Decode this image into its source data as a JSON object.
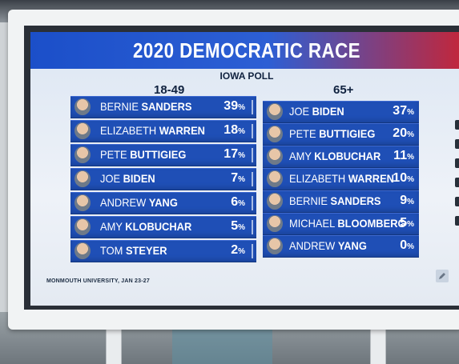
{
  "graphic": {
    "title": "2020 DEMOCRATIC RACE",
    "subtitle": "IOWA POLL",
    "source": "MONMOUTH UNIVERSITY, JAN 23-27"
  },
  "left_column": {
    "header": "18-49",
    "rows": [
      {
        "first": "BERNIE",
        "last": "SANDERS",
        "value": "39",
        "unit": "%"
      },
      {
        "first": "ELIZABETH",
        "last": "WARREN",
        "value": "18",
        "unit": "%"
      },
      {
        "first": "PETE",
        "last": "BUTTIGIEG",
        "value": "17",
        "unit": "%"
      },
      {
        "first": "JOE",
        "last": "BIDEN",
        "value": "7",
        "unit": "%"
      },
      {
        "first": "ANDREW",
        "last": "YANG",
        "value": "6",
        "unit": "%"
      },
      {
        "first": "AMY",
        "last": "KLOBUCHAR",
        "value": "5",
        "unit": "%"
      },
      {
        "first": "TOM",
        "last": "STEYER",
        "value": "2",
        "unit": "%"
      }
    ]
  },
  "right_column": {
    "header": "65+",
    "rows": [
      {
        "first": "JOE",
        "last": "BIDEN",
        "value": "37",
        "unit": "%"
      },
      {
        "first": "PETE",
        "last": "BUTTIGIEG",
        "value": "20",
        "unit": "%"
      },
      {
        "first": "AMY",
        "last": "KLOBUCHAR",
        "value": "11",
        "unit": "%"
      },
      {
        "first": "ELIZABETH",
        "last": "WARREN",
        "value": "10",
        "unit": "%"
      },
      {
        "first": "BERNIE",
        "last": "SANDERS",
        "value": "9",
        "unit": "%"
      },
      {
        "first": "MICHAEL",
        "last": "BLOOMBERG",
        "value": "5",
        "unit": "%"
      },
      {
        "first": "ANDREW",
        "last": "YANG",
        "value": "0",
        "unit": "%"
      }
    ]
  },
  "icons": [
    "candidate-photo-icon",
    "edit-pencil-icon",
    "sidebar-tool-icon"
  ],
  "colors": {
    "title_left": "#1b4fc9",
    "title_right": "#c3263a",
    "row_bar": "#1f4fb6",
    "panel_bg": "#dce6f3"
  }
}
